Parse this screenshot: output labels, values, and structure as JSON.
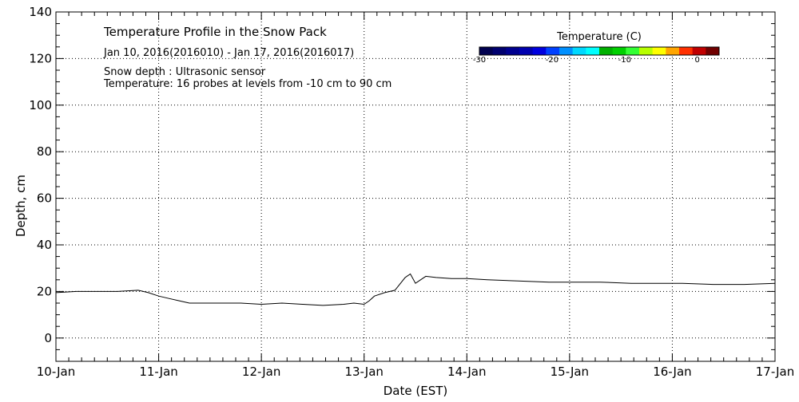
{
  "chart_data": {
    "type": "line",
    "title": "Temperature Profile in the Snow Pack",
    "subtitle": "Jan 10, 2016(2016010) - Jan 17, 2016(2016017)",
    "notes": [
      "Snow depth : Ultrasonic sensor",
      "Temperature: 16 probes at levels from -10 cm to 90 cm"
    ],
    "xlabel": "Date (EST)",
    "ylabel": "Depth, cm",
    "xlim": [
      0,
      7
    ],
    "ylim": [
      -10,
      140
    ],
    "x_tick_labels": [
      "10-Jan",
      "11-Jan",
      "12-Jan",
      "13-Jan",
      "14-Jan",
      "15-Jan",
      "16-Jan",
      "17-Jan"
    ],
    "y_ticks": [
      0,
      20,
      40,
      60,
      80,
      100,
      120,
      140
    ],
    "y_minor_step": 5,
    "x_minor_per_day": 8,
    "grid": true,
    "series": [
      {
        "x": [
          0.0,
          0.2,
          0.4,
          0.6,
          0.8,
          0.9,
          1.0,
          1.1,
          1.2,
          1.3,
          1.5,
          1.8,
          2.0,
          2.2,
          2.4,
          2.6,
          2.8,
          2.9,
          3.0,
          3.05,
          3.1,
          3.2,
          3.3,
          3.4,
          3.45,
          3.5,
          3.55,
          3.6,
          3.7,
          3.85,
          4.0,
          4.2,
          4.5,
          4.8,
          5.0,
          5.3,
          5.6,
          5.9,
          6.1,
          6.4,
          6.7,
          7.0
        ],
        "y": [
          19.5,
          20.0,
          20.0,
          20.0,
          20.5,
          19.5,
          18.0,
          17.0,
          16.0,
          15.0,
          15.0,
          15.0,
          14.5,
          15.0,
          14.5,
          14.0,
          14.5,
          15.0,
          14.5,
          16.0,
          18.0,
          19.5,
          20.5,
          26.0,
          27.5,
          23.5,
          25.0,
          26.5,
          26.0,
          25.5,
          25.5,
          25.0,
          24.5,
          24.0,
          24.0,
          24.0,
          23.5,
          23.5,
          23.5,
          23.0,
          23.0,
          23.5
        ]
      }
    ],
    "colorbar": {
      "title": "Temperature (C)",
      "tick_labels": [
        "-30",
        "-20",
        "-10",
        "0"
      ],
      "range": [
        -30,
        3
      ],
      "colors": [
        "#00004f",
        "#00006f",
        "#00008f",
        "#0000af",
        "#0000df",
        "#0040ff",
        "#0090ff",
        "#00d8ff",
        "#00ffff",
        "#00b000",
        "#00d000",
        "#33ff33",
        "#b8ff00",
        "#ffff00",
        "#ffa500",
        "#ff3000",
        "#c00000",
        "#700000"
      ]
    }
  }
}
